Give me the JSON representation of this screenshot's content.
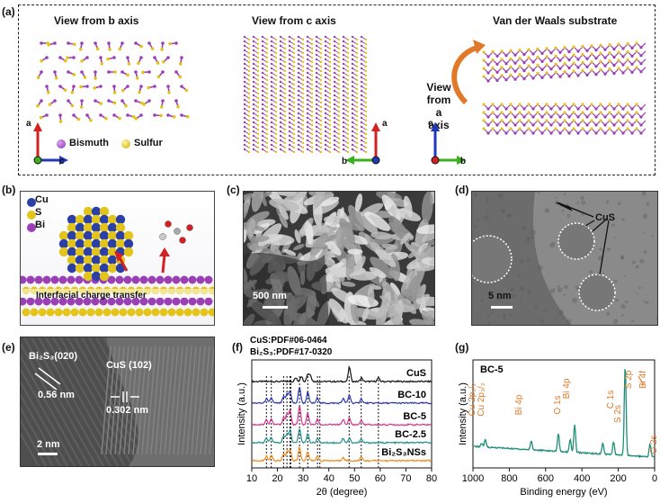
{
  "panel_a": {
    "label": "(a)",
    "view_b": "View from b axis",
    "view_c": "View from c axis",
    "vdw": "Van der Waals substrate",
    "view_a_lines": [
      "View",
      "from",
      "a",
      "axis"
    ],
    "legend_bi": "Bismuth",
    "legend_s": "Sulfur",
    "axes1": {
      "up": "a",
      "right": "c"
    },
    "axes2": {
      "up": "a",
      "left": "b"
    },
    "axes3": {
      "up": "c",
      "right": "b"
    }
  },
  "panel_b": {
    "label": "(b)",
    "legend": [
      "Cu",
      "S",
      "Bi"
    ],
    "caption": "Interfacial charge transfer"
  },
  "panel_c": {
    "label": "(c)",
    "scalebar": "500 nm"
  },
  "panel_d": {
    "label": "(d)",
    "annotation": "CuS",
    "scalebar": "5 nm"
  },
  "panel_e": {
    "label": "(e)",
    "bi2s3_plane": "Bi₂S₃(020)",
    "bi2s3_d": "0.56 nm",
    "cus_plane": "CuS (102)",
    "cus_d": "0.302 nm",
    "scalebar": "2 nm"
  },
  "colors": {
    "bismuth": "#9b3fb5",
    "sulfur": "#e3c51a",
    "copper": "#2b3fa8",
    "arrow_red": "#d32020",
    "arrow_blue": "#2238b8",
    "arrow_green": "#3bb01f",
    "orange": "#e07a2a"
  },
  "chart_data": [
    {
      "type": "line",
      "panel": "(f)",
      "title": "",
      "annotations": [
        "CuS:PDF#06-0464",
        "Bi₂S₃:PDF#17-0320"
      ],
      "xlabel": "2θ (degree)",
      "ylabel": "Intensity (a.u.)",
      "xlim": [
        10,
        80
      ],
      "xticks": [
        "10",
        "20",
        "30",
        "40",
        "50",
        "60",
        "70",
        "80"
      ],
      "reference_lines_x": [
        15.7,
        17.6,
        22.4,
        23.7,
        24.9,
        25.2,
        28.6,
        31.8,
        35.6,
        36.5,
        47.9,
        52.6,
        59.3
      ],
      "series": [
        {
          "name": "CuS",
          "color": "#111111",
          "peaks": [
            [
              27.1,
              4
            ],
            [
              29.3,
              6
            ],
            [
              31.8,
              8
            ],
            [
              32.8,
              7
            ],
            [
              48.0,
              16
            ],
            [
              52.7,
              4
            ],
            [
              59.3,
              4
            ]
          ]
        },
        {
          "name": "BC-10",
          "color": "#2d37b0",
          "peaks": [
            [
              15.7,
              5
            ],
            [
              17.6,
              6
            ],
            [
              22.4,
              7
            ],
            [
              23.7,
              10
            ],
            [
              24.9,
              14
            ],
            [
              28.6,
              18
            ],
            [
              31.8,
              12
            ],
            [
              35.6,
              6
            ],
            [
              45.6,
              5
            ],
            [
              48.0,
              9
            ],
            [
              52.6,
              5
            ]
          ]
        },
        {
          "name": "BC-5",
          "color": "#d4338f",
          "peaks": [
            [
              15.7,
              6
            ],
            [
              17.6,
              7
            ],
            [
              22.4,
              8
            ],
            [
              23.7,
              12
            ],
            [
              24.9,
              16
            ],
            [
              28.6,
              20
            ],
            [
              31.8,
              13
            ],
            [
              35.6,
              6
            ],
            [
              45.6,
              6
            ],
            [
              48.0,
              7
            ],
            [
              52.6,
              5
            ]
          ]
        },
        {
          "name": "BC-2.5",
          "color": "#1f8f86",
          "peaks": [
            [
              15.7,
              5
            ],
            [
              17.6,
              6
            ],
            [
              22.4,
              7
            ],
            [
              23.7,
              10
            ],
            [
              24.9,
              14
            ],
            [
              28.6,
              16
            ],
            [
              31.8,
              10
            ],
            [
              35.6,
              5
            ],
            [
              45.6,
              5
            ],
            [
              48.0,
              5
            ],
            [
              52.6,
              4
            ]
          ]
        },
        {
          "name": "Bi₂S₃NSs",
          "color": "#f08a1c",
          "peaks": [
            [
              15.7,
              5
            ],
            [
              17.6,
              6
            ],
            [
              22.4,
              8
            ],
            [
              23.7,
              10
            ],
            [
              24.9,
              13
            ],
            [
              28.6,
              15
            ],
            [
              31.8,
              10
            ],
            [
              35.6,
              5
            ],
            [
              45.6,
              4
            ],
            [
              52.6,
              4
            ]
          ]
        }
      ]
    },
    {
      "type": "line",
      "panel": "(g)",
      "title": "BC-5",
      "xlabel": "Binding energy (eV)",
      "ylabel": "Intensity (a.u.)",
      "xlim": [
        1000,
        0
      ],
      "xticks": [
        "1000",
        "800",
        "600",
        "400",
        "200",
        "0"
      ],
      "series": [
        {
          "name": "BC-5",
          "color": "#1f8f7a",
          "peaks": [
            [
              952,
              4
            ],
            [
              932,
              8
            ],
            [
              679,
              10
            ],
            [
              530,
              20
            ],
            [
              465,
              14
            ],
            [
              440,
              30
            ],
            [
              285,
              12
            ],
            [
              226,
              14
            ],
            [
              162,
              100
            ],
            [
              25,
              14
            ]
          ]
        }
      ],
      "peak_labels": [
        {
          "text": "Cu 2p₁/₂",
          "x": 952
        },
        {
          "text": "Cu 2p₃/₂",
          "x": 932
        },
        {
          "text": "Bi 4p",
          "x": 679
        },
        {
          "text": "O 1s",
          "x": 530
        },
        {
          "text": "Bi 4p",
          "x": 440
        },
        {
          "text": "C 1s",
          "x": 285
        },
        {
          "text": "S 2s",
          "x": 226
        },
        {
          "text": "S 2p",
          "x": 162
        },
        {
          "text": "Bi 4f",
          "x": 159
        },
        {
          "text": "O 2s",
          "x": 25
        }
      ]
    }
  ]
}
